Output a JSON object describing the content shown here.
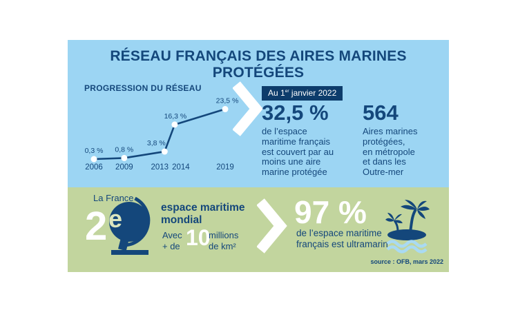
{
  "title": "RÉSEAU FRANÇAIS DES AIRES MARINES PROTÉGÉES",
  "colors": {
    "navy": "#14477b",
    "badge_navy": "#0d3c6b",
    "light_blue": "#9cd5f3",
    "green": "#c2d59e",
    "pale_green": "#dbe5be",
    "wave_blue": "#a9daf3"
  },
  "chart_data": {
    "type": "line",
    "title": "PROGRESSION DU RÉSEAU",
    "x": [
      2006,
      2009,
      2013,
      2014,
      2019
    ],
    "values": [
      0.3,
      0.8,
      3.8,
      16.3,
      23.5
    ],
    "point_labels": [
      "0,3 %",
      "0,8 %",
      "3,8 %",
      "16,3 %",
      "23,5 %"
    ],
    "x_tick_labels": [
      "2006",
      "2009",
      "2013",
      "2014",
      "2019"
    ],
    "ylabel": "",
    "xlabel": "",
    "ylim": [
      0,
      25
    ],
    "grid": false,
    "legend": null,
    "label_dx": [
      0,
      0,
      -12,
      1,
      3
    ],
    "tick_dx": [
      0,
      0,
      -7,
      9,
      0
    ]
  },
  "highlight": {
    "badge_prefix": "Au 1",
    "badge_sup": "er",
    "badge_suffix": " janvier 2022",
    "stat1_value": "32,5 %",
    "stat1_desc": "de l’espace\nmaritime français\nest couvert par au\nmoins une aire\nmarine protégée",
    "stat2_value": "564",
    "stat2_desc": "Aires marines\nprotégées,\nen métropole\net dans les\nOutre-mer"
  },
  "bottom": {
    "label": "La France",
    "rank_number": "2",
    "rank_sup": "e",
    "rank_title": "espace maritime\nmondial",
    "avec": "Avec\n+ de",
    "ten": "10",
    "millions": "millions\nde km²",
    "stat_value": "97 %",
    "stat_desc": "de l’espace maritime\nfrançais est ultramarin",
    "source": "source : OFB, mars 2022"
  }
}
